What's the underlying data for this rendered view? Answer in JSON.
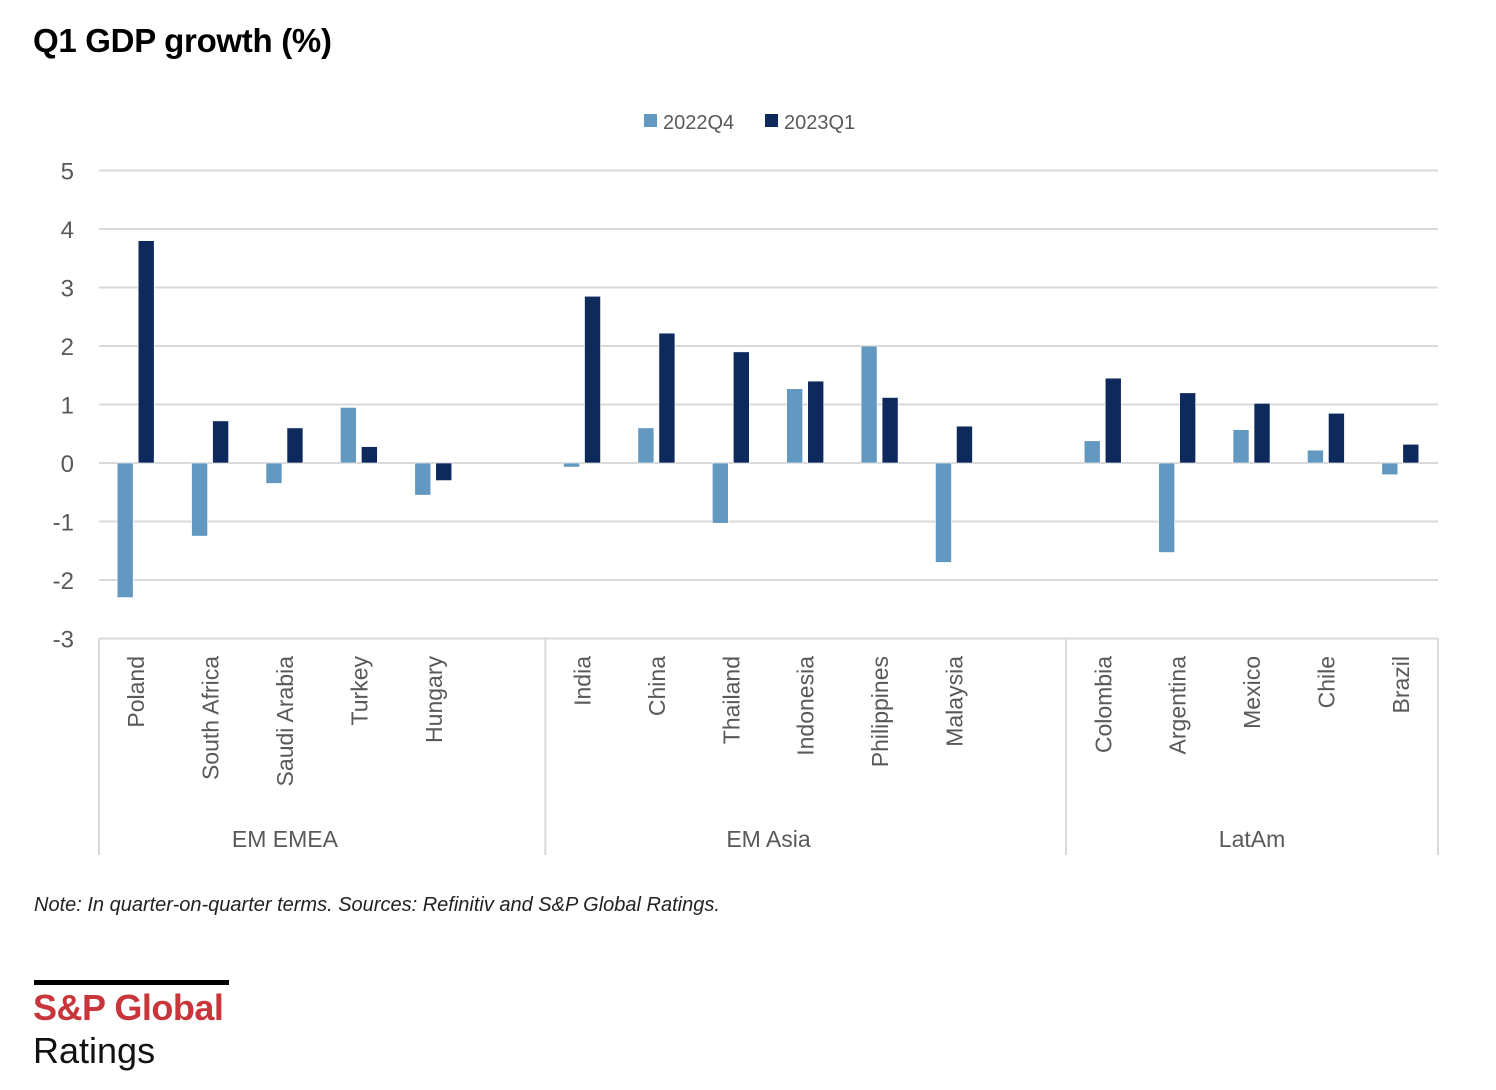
{
  "header": {
    "title": "Q1 GDP growth (%)"
  },
  "footer": {
    "note": "Note: In quarter-on-quarter  terms. Sources: Refinitiv and S&P Global Ratings.",
    "logo_brand": "S&P Global",
    "logo_sub": "Ratings"
  },
  "colors": {
    "series_2022Q4": "#6399c0",
    "series_2023Q1": "#0e2a5c",
    "grid": "#d9d9d9",
    "text": "#595959",
    "brand": "#c8363b"
  },
  "chart_data": {
    "type": "bar",
    "title": "Q1 GDP growth (%)",
    "xlabel": "",
    "ylabel": "",
    "ylim": [
      -3,
      5
    ],
    "yticks": [
      5,
      4,
      3,
      2,
      1,
      0,
      -1,
      -2,
      -3
    ],
    "grid": true,
    "legend_position": "top-center",
    "groups": [
      {
        "name": "EM EMEA",
        "categories": [
          "Poland",
          "South Africa",
          "Saudi Arabia",
          "Turkey",
          "Hungary"
        ]
      },
      {
        "name": "EM Asia",
        "categories": [
          "India",
          "China",
          "Thailand",
          "Indonesia",
          "Philippines",
          "Malaysia"
        ]
      },
      {
        "name": "LatAm",
        "categories": [
          "Colombia",
          "Argentina",
          "Mexico",
          "Chile",
          "Brazil"
        ]
      }
    ],
    "categories": [
      "Poland",
      "South Africa",
      "Saudi Arabia",
      "Turkey",
      "Hungary",
      "India",
      "China",
      "Thailand",
      "Indonesia",
      "Philippines",
      "Malaysia",
      "Colombia",
      "Argentina",
      "Mexico",
      "Chile",
      "Brazil"
    ],
    "series": [
      {
        "name": "2022Q4",
        "values": [
          -2.3,
          -1.25,
          -0.35,
          0.95,
          -0.55,
          -0.07,
          0.6,
          -1.03,
          1.27,
          2.0,
          -1.7,
          0.38,
          -1.53,
          0.57,
          0.22,
          -0.2
        ]
      },
      {
        "name": "2023Q1",
        "values": [
          3.8,
          0.72,
          0.6,
          0.28,
          -0.3,
          2.85,
          2.22,
          1.9,
          1.4,
          1.12,
          0.63,
          1.45,
          1.2,
          1.02,
          0.85,
          0.32
        ]
      }
    ]
  }
}
